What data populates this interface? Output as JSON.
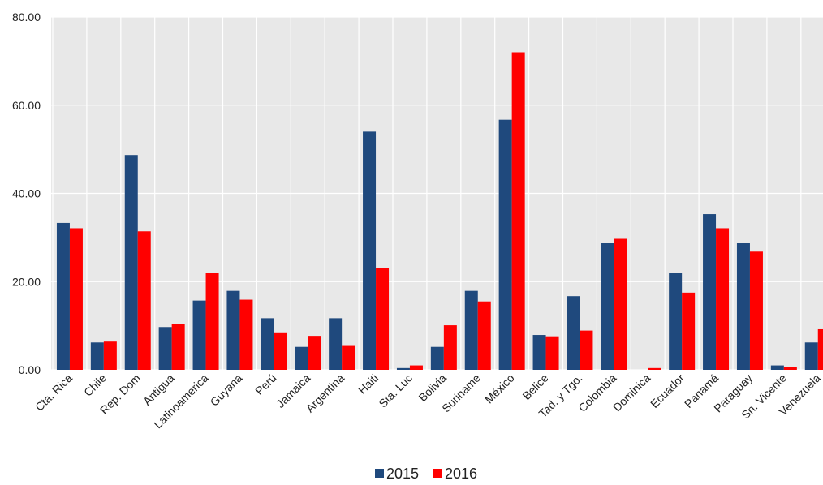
{
  "chart_data": {
    "type": "bar",
    "title": "",
    "xlabel": "",
    "ylabel": "",
    "ylim": [
      0,
      80
    ],
    "yticks": [
      "0.00",
      "20.00",
      "40.00",
      "60.00",
      "80.00"
    ],
    "grid": true,
    "legend_position": "bottom",
    "categories": [
      "Cta. Rica",
      "Chile",
      "Rep. Dom",
      "Antigua",
      "Latinoamerica",
      "Guyana",
      "Perú",
      "Jamaica",
      "Argentina",
      "Haiti",
      "Sta. Luc",
      "Bolivia",
      "Suriname",
      "México",
      "Belice",
      "Tad. y Tgo.",
      "Colombia",
      "Dominica",
      "Ecuador",
      "Panamá",
      "Paraguay",
      "Sn. Vicente",
      "Venezuela"
    ],
    "series": [
      {
        "name": "2015",
        "color": "#1f497d",
        "values": [
          33.3,
          6.2,
          48.7,
          9.7,
          15.7,
          17.9,
          11.7,
          5.2,
          11.7,
          54.0,
          0.4,
          5.2,
          17.9,
          56.7,
          7.9,
          16.7,
          28.8,
          0.0,
          22.0,
          35.3,
          28.8,
          1.0,
          6.2
        ]
      },
      {
        "name": "2016",
        "color": "#ff0000",
        "values": [
          32.1,
          6.4,
          31.4,
          10.3,
          22.0,
          15.9,
          8.5,
          7.7,
          5.6,
          23.0,
          1.0,
          10.1,
          15.5,
          72.0,
          7.6,
          8.9,
          29.7,
          0.4,
          17.5,
          32.1,
          26.8,
          0.6,
          9.2
        ]
      }
    ]
  }
}
